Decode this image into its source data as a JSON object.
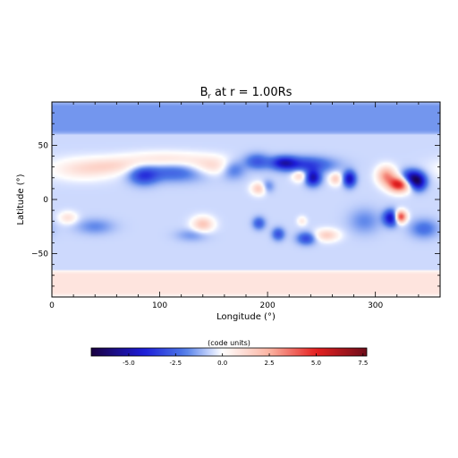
{
  "chart_data": {
    "type": "heatmap",
    "title": "B",
    "title_subscript": "r",
    "title_suffix": " at r = 1.00Rs",
    "xlabel": "Longitude (°)",
    "ylabel": "Latitude (°)",
    "xlim": [
      0,
      360
    ],
    "ylim": [
      -90,
      90
    ],
    "x_ticks": [
      0,
      100,
      200,
      300
    ],
    "x_tick_labels": [
      "0",
      "100",
      "200",
      "300"
    ],
    "y_ticks": [
      -50,
      0,
      50
    ],
    "y_tick_labels": [
      "−50",
      "0",
      "50"
    ],
    "background_value": -0.6,
    "polar_fields": [
      {
        "lat_min": 60,
        "lat_max": 90,
        "value": -1.6
      },
      {
        "lat_min": -90,
        "lat_max": -65,
        "value": 0.9
      }
    ],
    "features": [
      {
        "lon": 30,
        "lat": 28,
        "value": 1.6,
        "width_lon": 22,
        "width_lat": 7
      },
      {
        "lon": 60,
        "lat": 31,
        "value": 1.2,
        "width_lon": 18,
        "width_lat": 5
      },
      {
        "lon": 105,
        "lat": 37,
        "value": 1.5,
        "width_lon": 28,
        "width_lat": 5
      },
      {
        "lon": 150,
        "lat": 30,
        "value": 2.0,
        "width_lon": 16,
        "width_lat": 6
      },
      {
        "lon": 85,
        "lat": 22,
        "value": -2.6,
        "width_lon": 9,
        "width_lat": 6
      },
      {
        "lon": 115,
        "lat": 25,
        "value": -2.0,
        "width_lon": 22,
        "width_lat": 6
      },
      {
        "lon": 168,
        "lat": 28,
        "value": -2.1,
        "width_lon": 8,
        "width_lat": 6
      },
      {
        "lon": 235,
        "lat": 32,
        "value": -2.8,
        "width_lon": 18,
        "width_lat": 5
      },
      {
        "lon": 215,
        "lat": 34,
        "value": -3.2,
        "width_lon": 8,
        "width_lat": 4
      },
      {
        "lon": 190,
        "lat": 35,
        "value": -2.2,
        "width_lon": 8,
        "width_lat": 5
      },
      {
        "lon": 192,
        "lat": 10,
        "value": 2.4,
        "width_lon": 5,
        "width_lat": 4
      },
      {
        "lon": 200,
        "lat": 12,
        "value": -1.5,
        "width_lon": 4,
        "width_lat": 4
      },
      {
        "lon": 230,
        "lat": 22,
        "value": 2.2,
        "width_lon": 5,
        "width_lat": 4
      },
      {
        "lon": 242,
        "lat": 20,
        "value": -4.5,
        "width_lon": 5,
        "width_lat": 5
      },
      {
        "lon": 263,
        "lat": 19,
        "value": 2.3,
        "width_lon": 4,
        "width_lat": 4
      },
      {
        "lon": 276,
        "lat": 19,
        "value": -4.3,
        "width_lon": 4,
        "width_lat": 5
      },
      {
        "lon": 310,
        "lat": 22,
        "value": 3.5,
        "width_lon": 6,
        "width_lat": 6
      },
      {
        "lon": 322,
        "lat": 14,
        "value": 6.2,
        "width_lon": 7,
        "width_lat": 5
      },
      {
        "lon": 334,
        "lat": 20,
        "value": -4.8,
        "width_lon": 7,
        "width_lat": 5
      },
      {
        "lon": 340,
        "lat": 15,
        "value": -3.5,
        "width_lon": 5,
        "width_lat": 5
      },
      {
        "lon": 15,
        "lat": -17,
        "value": 1.6,
        "width_lon": 6,
        "width_lat": 4
      },
      {
        "lon": 40,
        "lat": -25,
        "value": -1.2,
        "width_lon": 12,
        "width_lat": 5
      },
      {
        "lon": 140,
        "lat": -23,
        "value": 2.5,
        "width_lon": 7,
        "width_lat": 5
      },
      {
        "lon": 130,
        "lat": -33,
        "value": -1.0,
        "width_lon": 10,
        "width_lat": 4
      },
      {
        "lon": 192,
        "lat": -22,
        "value": -2.2,
        "width_lon": 4,
        "width_lat": 4
      },
      {
        "lon": 210,
        "lat": -32,
        "value": -2.4,
        "width_lon": 4,
        "width_lat": 4
      },
      {
        "lon": 236,
        "lat": -36,
        "value": -2.6,
        "width_lon": 6,
        "width_lat": 4
      },
      {
        "lon": 255,
        "lat": -33,
        "value": 2.2,
        "width_lon": 8,
        "width_lat": 4
      },
      {
        "lon": 232,
        "lat": -20,
        "value": 1.3,
        "width_lon": 3,
        "width_lat": 3
      },
      {
        "lon": 315,
        "lat": -17,
        "value": -4.6,
        "width_lon": 5,
        "width_lat": 5
      },
      {
        "lon": 323,
        "lat": -16,
        "value": 6.0,
        "width_lon": 4,
        "width_lat": 4
      },
      {
        "lon": 345,
        "lat": -27,
        "value": -1.7,
        "width_lon": 9,
        "width_lat": 6
      },
      {
        "lon": 290,
        "lat": -20,
        "value": -1.2,
        "width_lon": 10,
        "width_lat": 8
      }
    ],
    "colorbar": {
      "label": "(code units)",
      "vmin": -7.0,
      "vmax": 7.7,
      "ticks": [
        -5.0,
        -2.5,
        0.0,
        2.5,
        5.0,
        7.5
      ],
      "tick_labels": [
        "-5.0",
        "-2.5",
        "0.0",
        "2.5",
        "5.0",
        "7.5"
      ],
      "colors": [
        {
          "value": -7.0,
          "color": "#1a0040"
        },
        {
          "value": -4.2,
          "color": "#1c1cd8"
        },
        {
          "value": -2.0,
          "color": "#4f7be8"
        },
        {
          "value": -0.5,
          "color": "#d6e0ff"
        },
        {
          "value": 0.0,
          "color": "#ffffff"
        },
        {
          "value": 2.5,
          "color": "#fbb4a2"
        },
        {
          "value": 5.0,
          "color": "#e62020"
        },
        {
          "value": 7.7,
          "color": "#6e0d1a"
        }
      ]
    }
  }
}
